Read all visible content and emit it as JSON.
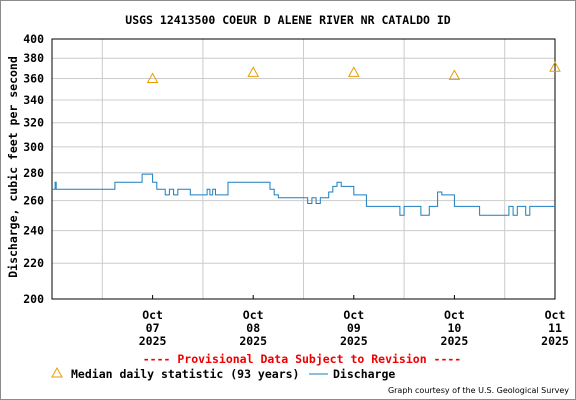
{
  "chart_data": {
    "type": "line",
    "title": "USGS 12413500 COEUR D ALENE RIVER NR CATALDO ID",
    "ylabel": "Discharge, cubic feet per second",
    "xlabel": "",
    "y_scale": "log",
    "ylim": [
      200,
      400
    ],
    "y_ticks": [
      200,
      220,
      240,
      260,
      280,
      300,
      320,
      340,
      360,
      380,
      400
    ],
    "x_range": [
      "2025-10-06T12:00",
      "2025-10-11T12:00"
    ],
    "x_ticks": [
      {
        "month": "Oct",
        "day": "07",
        "year": "2025"
      },
      {
        "month": "Oct",
        "day": "08",
        "year": "2025"
      },
      {
        "month": "Oct",
        "day": "09",
        "year": "2025"
      },
      {
        "month": "Oct",
        "day": "10",
        "year": "2025"
      },
      {
        "month": "Oct",
        "day": "11",
        "year": "2025"
      }
    ],
    "grid": true,
    "legend": "bottom",
    "series": [
      {
        "name": "Median daily statistic (93 years)",
        "marker": "triangle",
        "color": "#e69f00",
        "x": [
          "2025-10-07",
          "2025-10-08",
          "2025-10-09",
          "2025-10-10",
          "2025-10-11"
        ],
        "y": [
          360,
          366,
          366,
          363,
          371
        ]
      },
      {
        "name": "Discharge",
        "marker": "line",
        "color": "#1a7fbf",
        "x": [
          "2025-10-06T12:00",
          "2025-10-06T12:45",
          "2025-10-06T13:00",
          "2025-10-06T13:15",
          "2025-10-06T13:45",
          "2025-10-06T18:00",
          "2025-10-07T00:00",
          "2025-10-07T03:00",
          "2025-10-07T06:00",
          "2025-10-07T09:30",
          "2025-10-07T12:00",
          "2025-10-07T13:00",
          "2025-10-07T14:00",
          "2025-10-07T15:00",
          "2025-10-07T16:00",
          "2025-10-07T17:00",
          "2025-10-07T18:00",
          "2025-10-07T21:00",
          "2025-10-08T00:00",
          "2025-10-08T01:00",
          "2025-10-08T01:40",
          "2025-10-08T02:20",
          "2025-10-08T03:00",
          "2025-10-08T06:00",
          "2025-10-08T12:00",
          "2025-10-08T16:00",
          "2025-10-08T17:00",
          "2025-10-08T18:00",
          "2025-10-08T21:00",
          "2025-10-09T00:00",
          "2025-10-09T01:00",
          "2025-10-09T02:00",
          "2025-10-09T03:00",
          "2025-10-09T04:00",
          "2025-10-09T05:00",
          "2025-10-09T06:00",
          "2025-10-09T07:00",
          "2025-10-09T08:00",
          "2025-10-09T09:00",
          "2025-10-09T12:00",
          "2025-10-09T15:00",
          "2025-10-09T18:00",
          "2025-10-09T21:00",
          "2025-10-09T23:00",
          "2025-10-10T00:00",
          "2025-10-10T01:00",
          "2025-10-10T02:00",
          "2025-10-10T03:00",
          "2025-10-10T04:00",
          "2025-10-10T06:00",
          "2025-10-10T07:00",
          "2025-10-10T08:00",
          "2025-10-10T09:00",
          "2025-10-10T12:00",
          "2025-10-10T18:00",
          "2025-10-11T00:00",
          "2025-10-11T01:00",
          "2025-10-11T02:00",
          "2025-10-11T03:00",
          "2025-10-11T05:00",
          "2025-10-11T06:00",
          "2025-10-11T08:00",
          "2025-10-11T12:00"
        ],
        "y": [
          268,
          273,
          268,
          268,
          268,
          268,
          268,
          273,
          273,
          279,
          273,
          268,
          268,
          264,
          268,
          264,
          268,
          264,
          264,
          268,
          264,
          268,
          264,
          273,
          273,
          268,
          264,
          262,
          262,
          262,
          258,
          262,
          258,
          262,
          262,
          266,
          270,
          273,
          270,
          264,
          256,
          256,
          256,
          250,
          256,
          256,
          256,
          256,
          250,
          256,
          256,
          266,
          264,
          256,
          250,
          250,
          256,
          250,
          256,
          250,
          256,
          256,
          256
        ]
      }
    ]
  },
  "provisional_note": "---- Provisional Data Subject to Revision ----",
  "credit": "Graph courtesy of the U.S. Geological Survey"
}
